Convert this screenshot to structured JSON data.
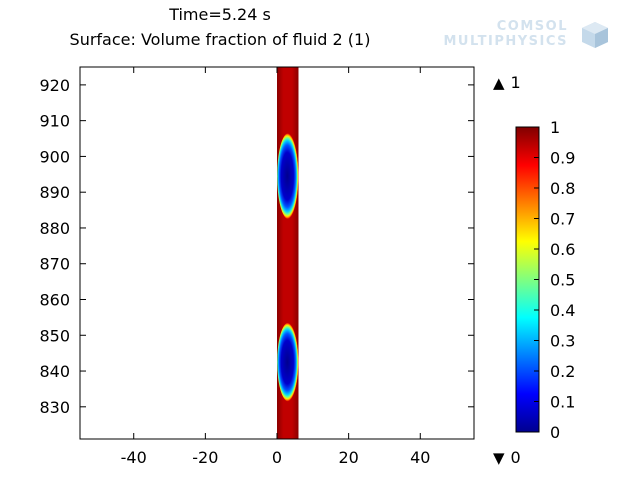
{
  "title": {
    "line1": "Time=5.24 s",
    "line2": "Surface: Volume fraction of fluid 2 (1)"
  },
  "logo": {
    "line1": "COMSOL",
    "line2": "MULTIPHYSICS",
    "icon": "comsol-cube-icon"
  },
  "chart_data": {
    "type": "heatmap",
    "title": "Surface: Volume fraction of fluid 2 (1)",
    "xlim": [
      -55,
      55
    ],
    "ylim": [
      821,
      925
    ],
    "xticks": [
      -40,
      -20,
      0,
      20,
      40
    ],
    "yticks": [
      830,
      840,
      850,
      860,
      870,
      880,
      890,
      900,
      910,
      920
    ],
    "domain": {
      "x": [
        0,
        6
      ],
      "y": [
        821,
        925
      ]
    },
    "background_value": 0.85,
    "bubbles": [
      {
        "center": [
          3.2,
          894.5
        ],
        "x_range": [
          0.6,
          5.8
        ],
        "y_range": [
          883,
          906
        ]
      },
      {
        "center": [
          3.2,
          842.5
        ],
        "x_range": [
          0.6,
          5.8
        ],
        "y_range": [
          832,
          853
        ]
      }
    ],
    "colorbar": {
      "colormap": "jet",
      "range": [
        0,
        1
      ],
      "ticks": [
        "1",
        "0.9",
        "0.8",
        "0.7",
        "0.6",
        "0.5",
        "0.4",
        "0.3",
        "0.2",
        "0.1",
        "0"
      ],
      "max_label": "1",
      "min_label": "0"
    }
  }
}
